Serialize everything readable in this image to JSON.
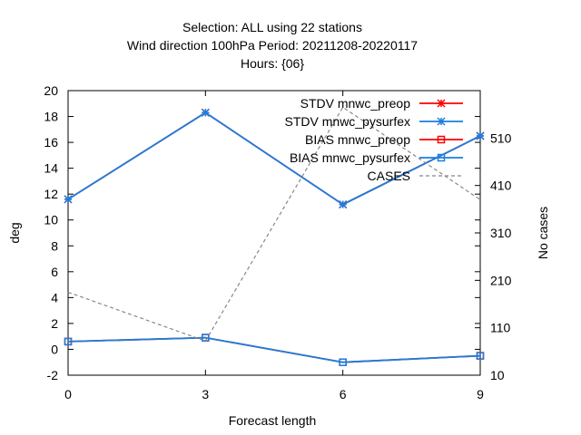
{
  "chart_data": {
    "type": "line",
    "title_lines": [
      "Selection: ALL using     22 stations",
      "Wind direction 100hPa   Period: 20211208-20220117",
      "Hours: {06}"
    ],
    "xlabel": "Forecast length",
    "ylabel": "deg",
    "y2label": "No cases",
    "x": [
      0,
      3,
      6,
      9
    ],
    "xlim": [
      0,
      9
    ],
    "ylim": [
      -2,
      20
    ],
    "y2lim": [
      10,
      610
    ],
    "xticks": [
      0,
      3,
      6,
      9
    ],
    "yticks": [
      -2,
      0,
      2,
      4,
      6,
      8,
      10,
      12,
      14,
      16,
      18,
      20
    ],
    "y2ticks": [
      10,
      110,
      210,
      310,
      410,
      510
    ],
    "grid": false,
    "legend_position": "top-right",
    "series": [
      {
        "name": "STDV mnwc_preop",
        "axis": "y",
        "marker": "cross",
        "color": "#ff0000",
        "values": [
          11.6,
          18.3,
          11.2,
          16.5
        ]
      },
      {
        "name": "STDV mnwc_pysurfex",
        "axis": "y",
        "marker": "cross",
        "color": "#1a7fe0",
        "values": [
          11.6,
          18.3,
          11.2,
          16.5
        ]
      },
      {
        "name": "BIAS mnwc_preop",
        "axis": "y",
        "marker": "square",
        "color": "#ff0000",
        "values": [
          0.6,
          0.9,
          -1.0,
          -0.5
        ]
      },
      {
        "name": "BIAS mnwc_pysurfex",
        "axis": "y",
        "marker": "square",
        "color": "#1a7fe0",
        "values": [
          0.6,
          0.9,
          -1.0,
          -0.5
        ]
      },
      {
        "name": "CASES",
        "axis": "y2",
        "marker": "none",
        "color": "#888888",
        "dashed": true,
        "values": [
          185,
          82,
          575,
          380
        ]
      }
    ]
  }
}
